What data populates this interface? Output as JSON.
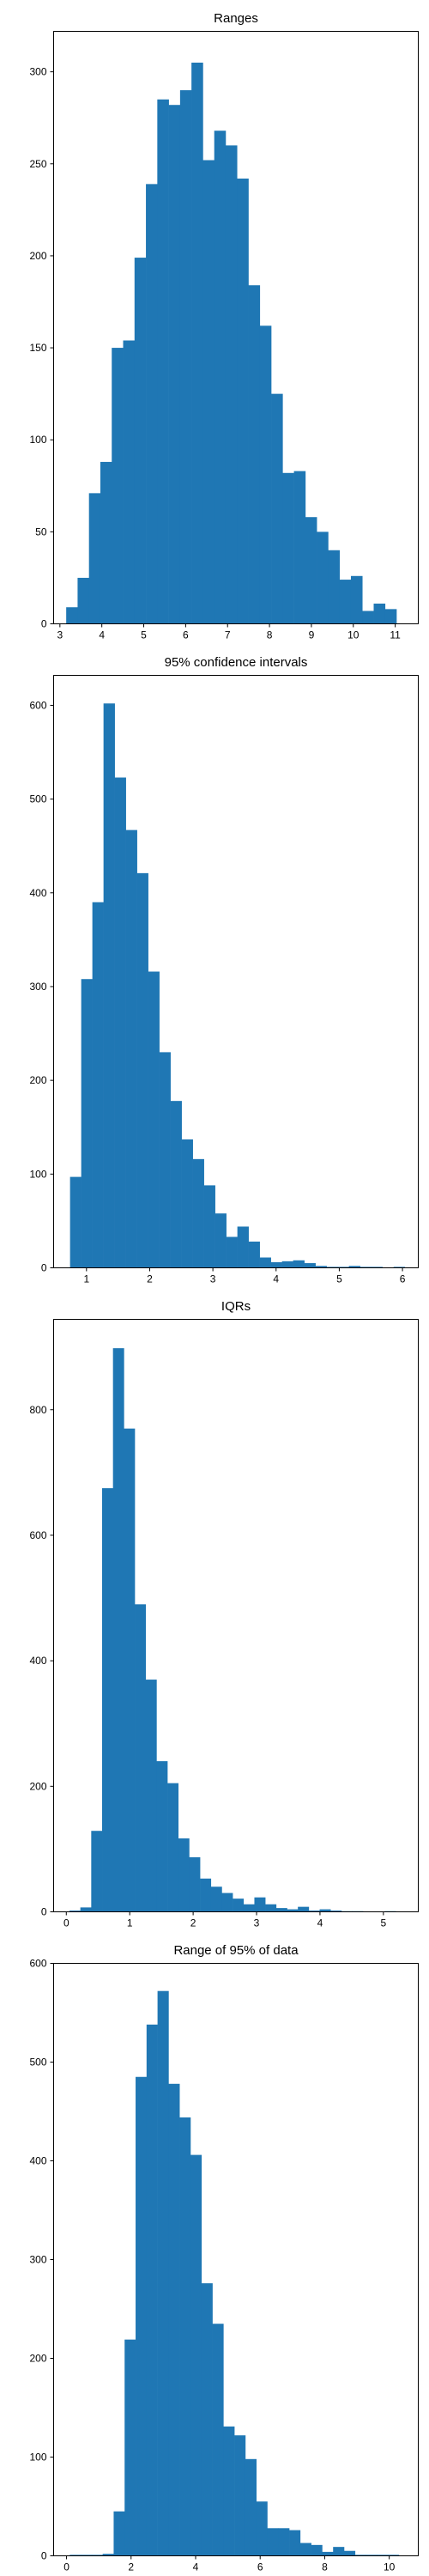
{
  "colors": {
    "bar": "#1f77b4",
    "axis": "#000000",
    "background": "#ffffff"
  },
  "chart_data": [
    {
      "type": "bar",
      "title": "Ranges",
      "xlabel": "",
      "ylabel": "",
      "grid": false,
      "xlim": [
        2.85,
        11.55
      ],
      "ylim": [
        0,
        322
      ],
      "xticks": [
        3,
        4,
        5,
        6,
        7,
        8,
        9,
        10,
        11
      ],
      "yticks": [
        0,
        50,
        100,
        150,
        200,
        250,
        300
      ],
      "bin_start": 3.15,
      "bin_width": 0.2717,
      "values": [
        9,
        25,
        71,
        88,
        150,
        154,
        199,
        239,
        285,
        282,
        290,
        305,
        252,
        268,
        260,
        242,
        184,
        162,
        125,
        82,
        83,
        58,
        50,
        40,
        24,
        26,
        7,
        11,
        8
      ]
    },
    {
      "type": "bar",
      "title": "95% confidence intervals",
      "xlabel": "",
      "ylabel": "",
      "grid": false,
      "xlim": [
        0.48,
        6.25
      ],
      "ylim": [
        0,
        632
      ],
      "xticks": [
        1,
        2,
        3,
        4,
        5,
        6
      ],
      "yticks": [
        0,
        100,
        200,
        300,
        400,
        500,
        600
      ],
      "bin_start": 0.74,
      "bin_width": 0.1765,
      "values": [
        97,
        308,
        390,
        602,
        523,
        467,
        421,
        316,
        230,
        178,
        137,
        116,
        88,
        58,
        33,
        44,
        28,
        11,
        6,
        7,
        8,
        5,
        2,
        1,
        1,
        2,
        1,
        1,
        0,
        1
      ]
    },
    {
      "type": "bar",
      "title": "IQRs",
      "xlabel": "",
      "ylabel": "",
      "grid": false,
      "xlim": [
        -0.2,
        5.55
      ],
      "ylim": [
        0,
        944
      ],
      "xticks": [
        0,
        1,
        2,
        3,
        4,
        5
      ],
      "yticks": [
        0,
        200,
        400,
        600,
        800
      ],
      "bin_start": 0.05,
      "bin_width": 0.1715,
      "values": [
        2,
        7,
        129,
        675,
        898,
        770,
        490,
        370,
        240,
        205,
        117,
        87,
        53,
        40,
        30,
        21,
        12,
        23,
        12,
        6,
        4,
        8,
        2,
        4,
        2,
        1,
        1,
        0,
        0,
        1
      ]
    },
    {
      "type": "bar",
      "title": "Range of 95% of data",
      "xlabel": "",
      "ylabel": "",
      "grid": false,
      "xlim": [
        -0.4,
        10.9
      ],
      "ylim": [
        0,
        600
      ],
      "xticks": [
        0,
        2,
        4,
        6,
        8,
        10
      ],
      "yticks": [
        0,
        100,
        200,
        300,
        400,
        500,
        600
      ],
      "bin_start": 0.1,
      "bin_width": 0.34,
      "values": [
        1,
        1,
        1,
        2,
        45,
        219,
        485,
        538,
        572,
        478,
        444,
        406,
        276,
        235,
        131,
        122,
        98,
        55,
        28,
        28,
        26,
        13,
        11,
        4,
        9,
        5,
        1,
        1,
        1,
        1
      ]
    }
  ]
}
